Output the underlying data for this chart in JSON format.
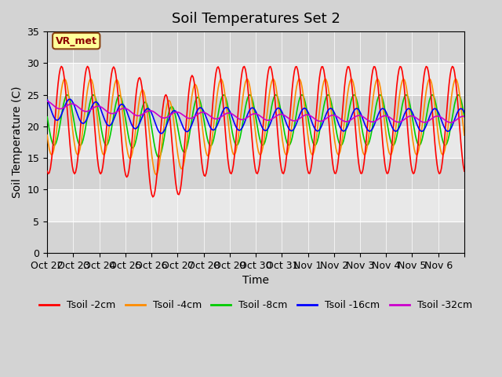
{
  "title": "Soil Temperatures Set 2",
  "xlabel": "Time",
  "ylabel": "Soil Temperature (C)",
  "ylim": [
    0,
    35
  ],
  "yticks": [
    0,
    5,
    10,
    15,
    20,
    25,
    30,
    35
  ],
  "background_color": "#d3d3d3",
  "plot_bg_color": "#e8e8e8",
  "grid_color": "#ffffff",
  "annotation_label": "VR_met",
  "annotation_box_color": "#ffff99",
  "annotation_border_color": "#8B4513",
  "legend_entries": [
    "Tsoil -2cm",
    "Tsoil -4cm",
    "Tsoil -8cm",
    "Tsoil -16cm",
    "Tsoil -32cm"
  ],
  "line_colors": [
    "#ff0000",
    "#ff8c00",
    "#00cc00",
    "#0000ff",
    "#cc00cc"
  ],
  "x_tick_labels": [
    "Oct 22",
    "Oct 23",
    "Oct 24",
    "Oct 25",
    "Oct 26",
    "Oct 27",
    "Oct 28",
    "Oct 29",
    "Oct 30",
    "Oct 31",
    "Nov 1",
    "Nov 2",
    "Nov 3",
    "Nov 4",
    "Nov 5",
    "Nov 6",
    ""
  ],
  "title_fontsize": 13,
  "label_fontsize": 10,
  "tick_fontsize": 9
}
